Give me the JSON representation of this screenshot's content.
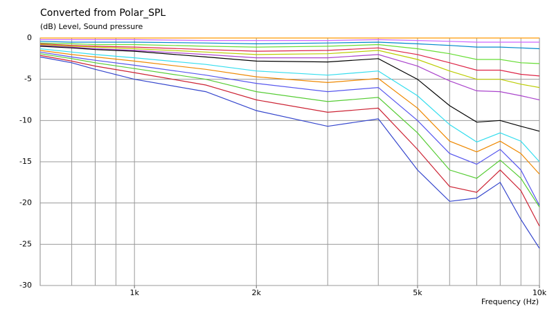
{
  "chart_data": {
    "type": "line",
    "title": "Converted from Polar_SPL",
    "subtitle": "(dB)  Level, Sound pressure",
    "x_label": "Frequency  (Hz)",
    "x_scale": "log",
    "xlim": [
      585,
      10000
    ],
    "xticks": [
      {
        "value": 1000,
        "label": "1k"
      },
      {
        "value": 2000,
        "label": "2k"
      },
      {
        "value": 5000,
        "label": "5k"
      },
      {
        "value": 10000,
        "label": "10k"
      }
    ],
    "xgrid": [
      700,
      800,
      900,
      1000,
      2000,
      3000,
      4000,
      5000,
      6000,
      7000,
      8000,
      9000
    ],
    "ylim": [
      -30,
      0
    ],
    "yticks": [
      0,
      -5,
      -10,
      -15,
      -20,
      -25,
      -30
    ],
    "grid": true,
    "x": [
      585,
      700,
      800,
      1000,
      1500,
      2000,
      3000,
      4000,
      5000,
      6000,
      7000,
      8000,
      9000,
      10000
    ],
    "series": [
      {
        "color": "#ff9900",
        "values": [
          0,
          0,
          0,
          0,
          0,
          0,
          0,
          0,
          0,
          0,
          0,
          0,
          0,
          0
        ]
      },
      {
        "color": "#cc66ff",
        "values": [
          -0.2,
          -0.2,
          -0.2,
          -0.2,
          -0.3,
          -0.3,
          -0.3,
          -0.2,
          -0.3,
          -0.4,
          -0.5,
          -0.5,
          -0.5,
          -0.5
        ]
      },
      {
        "color": "#0088cc",
        "values": [
          -0.4,
          -0.5,
          -0.5,
          -0.5,
          -0.6,
          -0.7,
          -0.6,
          -0.5,
          -0.7,
          -0.9,
          -1.1,
          -1.1,
          -1.2,
          -1.3
        ]
      },
      {
        "color": "#66dd33",
        "values": [
          -0.6,
          -0.7,
          -0.8,
          -0.8,
          -1,
          -1.1,
          -1,
          -0.8,
          -1.3,
          -1.9,
          -2.6,
          -2.6,
          -3.0,
          -3.1
        ]
      },
      {
        "color": "#dd2244",
        "values": [
          -0.7,
          -0.9,
          -1.0,
          -1.1,
          -1.4,
          -1.6,
          -1.5,
          -1.2,
          -2,
          -3,
          -3.9,
          -3.9,
          -4.4,
          -4.6
        ]
      },
      {
        "color": "#bbcc00",
        "values": [
          -0.8,
          -1,
          -1.1,
          -1.3,
          -1.7,
          -2,
          -1.9,
          -1.5,
          -2.6,
          -4,
          -5,
          -5,
          -5.6,
          -6
        ]
      },
      {
        "color": "#aa44cc",
        "values": [
          -0.9,
          -1.1,
          -1.3,
          -1.5,
          -2,
          -2.4,
          -2.4,
          -2.0,
          -3.4,
          -5.2,
          -6.4,
          -6.5,
          -7,
          -7.5
        ]
      },
      {
        "color": "#000000",
        "values": [
          -1,
          -1.2,
          -1.4,
          -1.6,
          -2.3,
          -2.8,
          -2.9,
          -2.5,
          -5,
          -8.2,
          -10.2,
          -10,
          -10.7,
          -11.3
        ]
      },
      {
        "color": "#33ddee",
        "values": [
          -1.3,
          -1.7,
          -2,
          -2.4,
          -3.2,
          -4,
          -4.5,
          -4,
          -7,
          -10.5,
          -12.6,
          -11.5,
          -12.5,
          -15
        ]
      },
      {
        "color": "#ee8800",
        "values": [
          -1.5,
          -2,
          -2.3,
          -2.8,
          -3.8,
          -4.7,
          -5.4,
          -4.9,
          -8.5,
          -12.5,
          -13.8,
          -12.5,
          -14,
          -16.5
        ]
      },
      {
        "color": "#5555ee",
        "values": [
          -1.7,
          -2.3,
          -2.7,
          -3.3,
          -4.5,
          -5.5,
          -6.5,
          -6,
          -10,
          -14,
          -15.3,
          -13.5,
          -16,
          -20.3
        ]
      },
      {
        "color": "#55cc33",
        "values": [
          -1.9,
          -2.5,
          -3,
          -3.7,
          -5,
          -6.5,
          -7.7,
          -7.2,
          -11.5,
          -16,
          -17,
          -14.8,
          -17,
          -20.5
        ]
      },
      {
        "color": "#cc2233",
        "values": [
          -2.1,
          -2.8,
          -3.4,
          -4.2,
          -5.7,
          -7.5,
          -9,
          -8.5,
          -13.5,
          -18,
          -18.7,
          -16,
          -18.5,
          -22.8
        ]
      },
      {
        "color": "#3344cc",
        "values": [
          -2.3,
          -3,
          -3.8,
          -5,
          -6.5,
          -8.8,
          -10.7,
          -9.8,
          -16,
          -19.8,
          -19.4,
          -17.5,
          -22,
          -25.5
        ]
      }
    ]
  }
}
